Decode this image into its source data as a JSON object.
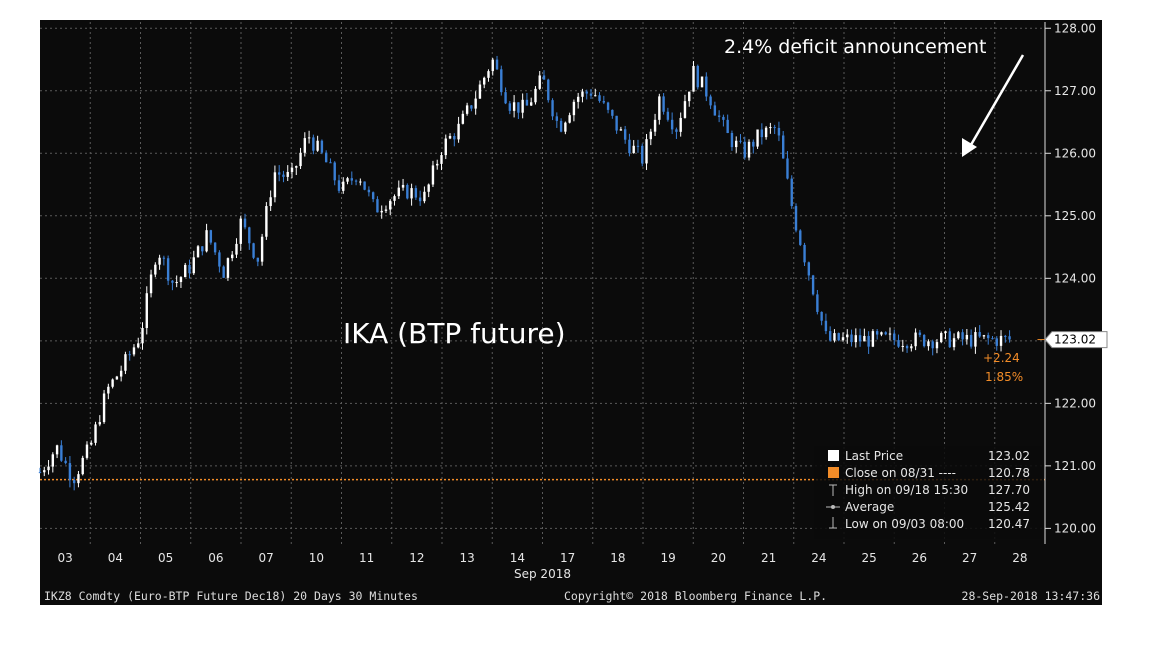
{
  "chart_data": {
    "type": "candlestick",
    "title": "",
    "annotations": {
      "chart_label": "IKA (BTP future)",
      "event_label": "2.4% deficit announcement",
      "change_abs": "+2.24",
      "change_pct": "1.85%"
    },
    "xlabel": "Sep 2018",
    "x_ticks": [
      "03",
      "04",
      "05",
      "06",
      "07",
      "10",
      "11",
      "12",
      "13",
      "14",
      "17",
      "18",
      "19",
      "20",
      "21",
      "24",
      "25",
      "26",
      "27",
      "28"
    ],
    "y_ticks": [
      "120.00",
      "121.00",
      "122.00",
      "123.00",
      "124.00",
      "125.00",
      "126.00",
      "127.00",
      "128.00"
    ],
    "ylim": [
      119.75,
      128.1
    ],
    "last_price_tag": "123.02",
    "reference_line": 120.78,
    "series": [
      {
        "name": "Last Price",
        "x_day_index": [
          0,
          0.33,
          0.66,
          1,
          1.33,
          1.66,
          2,
          2.33,
          2.66,
          3,
          3.33,
          3.66,
          4,
          4.33,
          4.66,
          5,
          5.33,
          5.66,
          6,
          6.33,
          6.66,
          7,
          7.33,
          7.66,
          8,
          8.33,
          8.66,
          9,
          9.33,
          9.66,
          10,
          10.33,
          10.66,
          11,
          11.33,
          11.66,
          12,
          12.33,
          12.66,
          13,
          13.33,
          13.66,
          14,
          14.33,
          14.66,
          15,
          15.33,
          15.66,
          16,
          16.33,
          16.66,
          17,
          17.33,
          17.66,
          18,
          18.33,
          18.66,
          19,
          19.35
        ],
        "values": [
          120.9,
          121.3,
          120.8,
          121.3,
          122.2,
          122.6,
          123.1,
          124.5,
          123.9,
          124.2,
          124.7,
          124.1,
          124.9,
          124.3,
          125.7,
          125.6,
          126.3,
          125.9,
          125.4,
          125.7,
          125.1,
          125.3,
          125.4,
          125.3,
          126.1,
          126.4,
          126.9,
          127.5,
          126.8,
          126.7,
          127.2,
          126.4,
          126.9,
          127.0,
          126.6,
          126.2,
          125.9,
          126.9,
          126.4,
          127.3,
          126.9,
          126.3,
          126.0,
          126.3,
          126.4,
          125.0,
          124.0,
          123.0,
          123.02,
          123.02,
          123.02,
          123.02,
          123.02,
          123.02,
          123.02,
          123.02,
          123.02,
          123.02,
          123.02
        ]
      }
    ],
    "legend": {
      "items": [
        {
          "label": "Last Price",
          "value": "123.02"
        },
        {
          "label": "Close on 08/31 ----",
          "value": "120.78"
        },
        {
          "label": "High on 09/18 15:30",
          "value": "127.70"
        },
        {
          "label": "Average",
          "value": "125.42"
        },
        {
          "label": "Low on 09/03 08:00",
          "value": "120.47"
        }
      ]
    },
    "footer": {
      "left": "IKZ8 Comdty (Euro-BTP Future   Dec18) 20 Days 30 Minutes",
      "center": "Copyright© 2018 Bloomberg Finance L.P.",
      "right": "28-Sep-2018 13:47:36"
    },
    "colors": {
      "background": "#0b0b0b",
      "candle_up": "#ffffff",
      "candle_down": "#3a7fd5",
      "reference_line": "#f28c28",
      "grid": "#5a5a5a",
      "text": "#e6e6e6"
    }
  }
}
